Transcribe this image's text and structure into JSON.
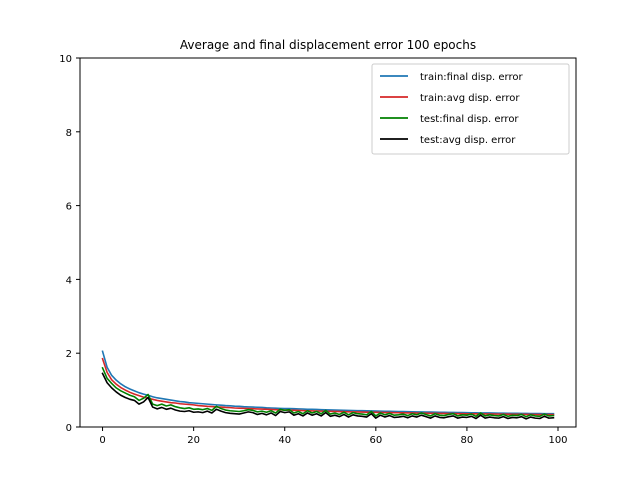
{
  "chart_data": {
    "type": "line",
    "title": "Average and final displacement error 100 epochs",
    "xlabel": "",
    "ylabel": "",
    "xlim": [
      -4.95,
      103.95
    ],
    "ylim": [
      0,
      10
    ],
    "xticks": [
      0,
      20,
      40,
      60,
      80,
      100
    ],
    "yticks": [
      0,
      2,
      4,
      6,
      8,
      10
    ],
    "grid": false,
    "legend_position": "top-right",
    "x": [
      0,
      1,
      2,
      3,
      4,
      5,
      6,
      7,
      8,
      9,
      10,
      11,
      12,
      13,
      14,
      15,
      16,
      17,
      18,
      19,
      20,
      21,
      22,
      23,
      24,
      25,
      26,
      27,
      28,
      29,
      30,
      31,
      32,
      33,
      34,
      35,
      36,
      37,
      38,
      39,
      40,
      41,
      42,
      43,
      44,
      45,
      46,
      47,
      48,
      49,
      50,
      51,
      52,
      53,
      54,
      55,
      56,
      57,
      58,
      59,
      60,
      61,
      62,
      63,
      64,
      65,
      66,
      67,
      68,
      69,
      70,
      71,
      72,
      73,
      74,
      75,
      76,
      77,
      78,
      79,
      80,
      81,
      82,
      83,
      84,
      85,
      86,
      87,
      88,
      89,
      90,
      91,
      92,
      93,
      94,
      95,
      96,
      97,
      98,
      99
    ],
    "series": [
      {
        "name": "train:final disp. error",
        "color": "#1f77b4",
        "values": [
          2.05,
          1.62,
          1.4,
          1.27,
          1.17,
          1.09,
          1.03,
          0.98,
          0.93,
          0.89,
          0.86,
          0.82,
          0.79,
          0.77,
          0.75,
          0.73,
          0.71,
          0.69,
          0.68,
          0.66,
          0.65,
          0.64,
          0.63,
          0.62,
          0.61,
          0.6,
          0.59,
          0.58,
          0.575,
          0.565,
          0.56,
          0.55,
          0.545,
          0.54,
          0.535,
          0.53,
          0.52,
          0.515,
          0.51,
          0.505,
          0.5,
          0.5,
          0.495,
          0.49,
          0.485,
          0.48,
          0.478,
          0.475,
          0.47,
          0.466,
          0.463,
          0.46,
          0.456,
          0.453,
          0.45,
          0.447,
          0.444,
          0.441,
          0.438,
          0.435,
          0.432,
          0.43,
          0.427,
          0.424,
          0.422,
          0.42,
          0.417,
          0.415,
          0.412,
          0.41,
          0.408,
          0.406,
          0.404,
          0.402,
          0.4,
          0.398,
          0.396,
          0.394,
          0.392,
          0.39,
          0.388,
          0.386,
          0.384,
          0.383,
          0.381,
          0.38,
          0.378,
          0.376,
          0.375,
          0.373,
          0.372,
          0.37,
          0.369,
          0.367,
          0.366,
          0.365,
          0.363,
          0.362,
          0.36,
          0.36
        ]
      },
      {
        "name": "train:avg disp. error",
        "color": "#d62728",
        "values": [
          1.85,
          1.48,
          1.28,
          1.16,
          1.07,
          1.0,
          0.94,
          0.89,
          0.85,
          0.81,
          0.78,
          0.75,
          0.72,
          0.7,
          0.68,
          0.66,
          0.65,
          0.63,
          0.62,
          0.61,
          0.6,
          0.58,
          0.57,
          0.56,
          0.555,
          0.545,
          0.54,
          0.53,
          0.525,
          0.515,
          0.51,
          0.505,
          0.5,
          0.495,
          0.49,
          0.485,
          0.48,
          0.475,
          0.47,
          0.465,
          0.46,
          0.456,
          0.452,
          0.448,
          0.444,
          0.44,
          0.437,
          0.434,
          0.43,
          0.427,
          0.424,
          0.421,
          0.418,
          0.415,
          0.412,
          0.41,
          0.407,
          0.404,
          0.402,
          0.4,
          0.397,
          0.395,
          0.393,
          0.39,
          0.388,
          0.386,
          0.384,
          0.382,
          0.38,
          0.378,
          0.376,
          0.374,
          0.372,
          0.371,
          0.369,
          0.367,
          0.366,
          0.364,
          0.362,
          0.361,
          0.359,
          0.358,
          0.356,
          0.355,
          0.353,
          0.352,
          0.351,
          0.349,
          0.348,
          0.347,
          0.345,
          0.344,
          0.343,
          0.342,
          0.341,
          0.339,
          0.338,
          0.337,
          0.336,
          0.335
        ]
      },
      {
        "name": "test:final disp. error",
        "color": "#008000",
        "values": [
          1.6,
          1.32,
          1.18,
          1.06,
          0.98,
          0.92,
          0.86,
          0.82,
          0.72,
          0.78,
          0.88,
          0.62,
          0.58,
          0.62,
          0.57,
          0.6,
          0.55,
          0.52,
          0.5,
          0.52,
          0.48,
          0.49,
          0.47,
          0.5,
          0.45,
          0.56,
          0.5,
          0.46,
          0.44,
          0.43,
          0.42,
          0.44,
          0.47,
          0.45,
          0.41,
          0.43,
          0.4,
          0.44,
          0.38,
          0.48,
          0.45,
          0.47,
          0.38,
          0.42,
          0.36,
          0.44,
          0.38,
          0.42,
          0.36,
          0.45,
          0.35,
          0.38,
          0.34,
          0.4,
          0.33,
          0.39,
          0.36,
          0.35,
          0.33,
          0.42,
          0.3,
          0.38,
          0.33,
          0.37,
          0.32,
          0.33,
          0.35,
          0.31,
          0.36,
          0.33,
          0.38,
          0.34,
          0.3,
          0.36,
          0.32,
          0.31,
          0.34,
          0.36,
          0.3,
          0.33,
          0.32,
          0.35,
          0.29,
          0.38,
          0.3,
          0.33,
          0.31,
          0.3,
          0.34,
          0.29,
          0.32,
          0.31,
          0.34,
          0.28,
          0.33,
          0.3,
          0.29,
          0.35,
          0.3,
          0.31
        ]
      },
      {
        "name": "test:avg disp. error",
        "color": "#000000",
        "values": [
          1.45,
          1.2,
          1.06,
          0.95,
          0.86,
          0.8,
          0.75,
          0.72,
          0.62,
          0.68,
          0.8,
          0.54,
          0.49,
          0.53,
          0.48,
          0.51,
          0.46,
          0.43,
          0.42,
          0.44,
          0.4,
          0.41,
          0.39,
          0.43,
          0.38,
          0.48,
          0.43,
          0.39,
          0.37,
          0.36,
          0.35,
          0.38,
          0.41,
          0.39,
          0.34,
          0.37,
          0.33,
          0.38,
          0.31,
          0.42,
          0.39,
          0.41,
          0.32,
          0.36,
          0.3,
          0.38,
          0.32,
          0.36,
          0.3,
          0.39,
          0.29,
          0.32,
          0.28,
          0.34,
          0.27,
          0.33,
          0.3,
          0.29,
          0.27,
          0.36,
          0.24,
          0.32,
          0.27,
          0.31,
          0.26,
          0.27,
          0.29,
          0.25,
          0.3,
          0.27,
          0.32,
          0.28,
          0.24,
          0.3,
          0.26,
          0.25,
          0.28,
          0.3,
          0.24,
          0.27,
          0.26,
          0.29,
          0.23,
          0.32,
          0.24,
          0.27,
          0.25,
          0.24,
          0.28,
          0.23,
          0.26,
          0.25,
          0.28,
          0.22,
          0.27,
          0.24,
          0.23,
          0.29,
          0.24,
          0.25
        ]
      }
    ]
  }
}
